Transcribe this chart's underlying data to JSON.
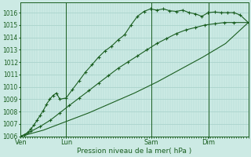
{
  "background_color": "#cceae4",
  "grid_color": "#aad4cc",
  "line_color": "#1a5e20",
  "title": "Pression niveau de la mer( hPa )",
  "ylim": [
    1006,
    1016.8
  ],
  "yticks": [
    1006,
    1007,
    1008,
    1009,
    1010,
    1011,
    1012,
    1013,
    1014,
    1015,
    1016
  ],
  "day_labels": [
    "Ven",
    "Lun",
    "Sam",
    "Dim"
  ],
  "day_positions": [
    0,
    0.2,
    0.575,
    0.825
  ],
  "total_hours": 1.0,
  "line1_x": [
    0.0,
    0.016,
    0.03,
    0.045,
    0.058,
    0.072,
    0.086,
    0.1,
    0.114,
    0.128,
    0.142,
    0.157,
    0.172,
    0.2,
    0.228,
    0.257,
    0.285,
    0.314,
    0.342,
    0.37,
    0.4,
    0.428,
    0.456,
    0.485,
    0.513,
    0.542,
    0.57,
    0.598,
    0.627,
    0.655,
    0.683,
    0.712,
    0.74,
    0.768,
    0.796,
    0.824,
    0.852,
    0.88,
    0.909,
    0.937,
    0.965,
    1.0
  ],
  "line1_y": [
    1006.0,
    1006.1,
    1006.3,
    1006.6,
    1006.9,
    1007.3,
    1007.7,
    1008.1,
    1008.6,
    1009.0,
    1009.3,
    1009.5,
    1009.0,
    1009.1,
    1009.8,
    1010.5,
    1011.2,
    1011.8,
    1012.4,
    1012.9,
    1013.3,
    1013.8,
    1014.2,
    1015.0,
    1015.7,
    1016.1,
    1016.3,
    1016.2,
    1016.3,
    1016.15,
    1016.1,
    1016.2,
    1016.0,
    1015.9,
    1015.7,
    1016.0,
    1016.05,
    1016.0,
    1016.0,
    1016.0,
    1015.8,
    1015.2
  ],
  "line2_x": [
    0.0,
    0.045,
    0.086,
    0.13,
    0.172,
    0.214,
    0.257,
    0.3,
    0.342,
    0.385,
    0.428,
    0.47,
    0.513,
    0.555,
    0.598,
    0.64,
    0.683,
    0.725,
    0.768,
    0.81,
    0.852,
    0.895,
    0.937,
    1.0
  ],
  "line2_y": [
    1006.0,
    1006.4,
    1006.8,
    1007.3,
    1007.9,
    1008.5,
    1009.1,
    1009.7,
    1010.3,
    1010.9,
    1011.5,
    1012.0,
    1012.5,
    1013.0,
    1013.5,
    1013.9,
    1014.3,
    1014.6,
    1014.8,
    1015.0,
    1015.1,
    1015.2,
    1015.2,
    1015.2
  ],
  "line3_x": [
    0.0,
    0.1,
    0.2,
    0.3,
    0.4,
    0.5,
    0.6,
    0.7,
    0.8,
    0.9,
    1.0
  ],
  "line3_y": [
    1006.0,
    1006.5,
    1007.2,
    1007.9,
    1008.7,
    1009.5,
    1010.4,
    1011.4,
    1012.4,
    1013.5,
    1015.2
  ]
}
